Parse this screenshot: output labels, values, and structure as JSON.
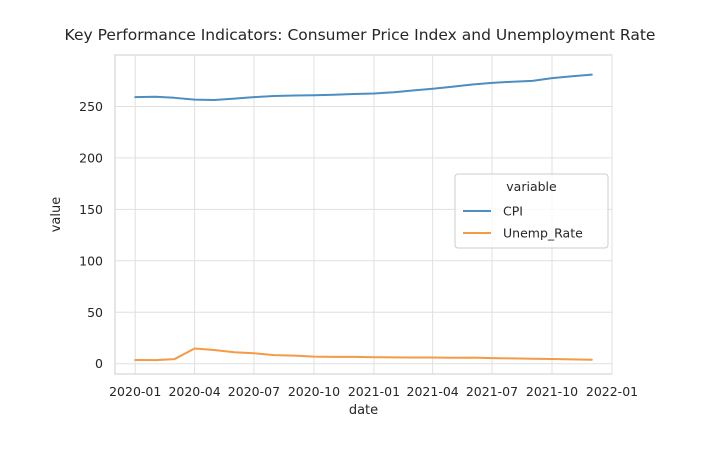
{
  "chart_data": {
    "type": "line",
    "title": "Key Performance Indicators: Consumer Price Index and Unemployment Rate",
    "xlabel": "date",
    "ylabel": "value",
    "x_tick_labels": [
      "2020-01",
      "2020-04",
      "2020-07",
      "2020-10",
      "2021-01",
      "2021-04",
      "2021-07",
      "2021-10",
      "2022-01"
    ],
    "x_ticks": [
      "2020-01-01",
      "2020-04-01",
      "2020-07-01",
      "2020-10-01",
      "2021-01-01",
      "2021-04-01",
      "2021-07-01",
      "2021-10-01",
      "2022-01-01"
    ],
    "y_ticks": [
      0,
      50,
      100,
      150,
      200,
      250
    ],
    "xlim": [
      "2019-12-01",
      "2022-01-01"
    ],
    "ylim": [
      -10,
      300
    ],
    "grid": true,
    "legend": {
      "title": "variable",
      "placement": "center-right"
    },
    "x": [
      "2020-01-01",
      "2020-02-01",
      "2020-03-01",
      "2020-04-01",
      "2020-05-01",
      "2020-06-01",
      "2020-07-01",
      "2020-08-01",
      "2020-09-01",
      "2020-10-01",
      "2020-11-01",
      "2020-12-01",
      "2021-01-01",
      "2021-02-01",
      "2021-03-01",
      "2021-04-01",
      "2021-05-01",
      "2021-06-01",
      "2021-07-01",
      "2021-08-01",
      "2021-09-01",
      "2021-10-01",
      "2021-11-01",
      "2021-12-01"
    ],
    "series": [
      {
        "name": "CPI",
        "color": "#4c8ec2",
        "values": [
          259.1,
          259.4,
          258.4,
          256.6,
          256.3,
          257.6,
          259.1,
          260.1,
          260.6,
          260.9,
          261.4,
          262.1,
          262.6,
          263.8,
          265.5,
          267.2,
          269.1,
          271.3,
          272.9,
          274.0,
          274.9,
          277.5,
          279.4,
          280.9
        ]
      },
      {
        "name": "Unemp_Rate",
        "color": "#f59a45",
        "values": [
          3.6,
          3.5,
          4.4,
          14.8,
          13.3,
          11.1,
          10.2,
          8.4,
          7.8,
          6.9,
          6.7,
          6.7,
          6.3,
          6.2,
          6.0,
          6.0,
          5.8,
          5.9,
          5.4,
          5.2,
          4.8,
          4.6,
          4.2,
          3.9
        ]
      }
    ]
  }
}
